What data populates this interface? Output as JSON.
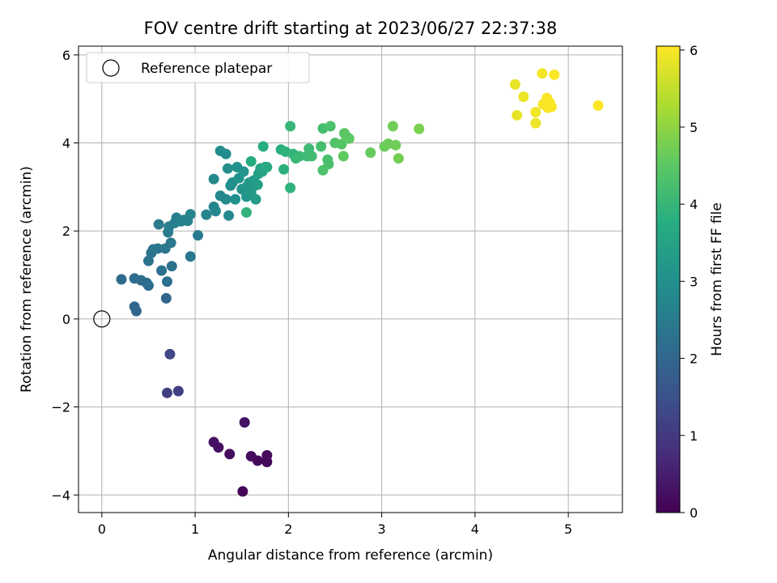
{
  "chart_data": {
    "type": "scatter",
    "title": "FOV centre drift starting at 2023/06/27 22:37:38",
    "xlabel": "Angular distance from reference (arcmin)",
    "ylabel": "Rotation from reference (arcmin)",
    "colorbar_label": "Hours from first FF file",
    "xlim": [
      -0.25,
      5.58
    ],
    "ylim": [
      -4.4,
      6.2
    ],
    "x_ticks": [
      0,
      1,
      2,
      3,
      4,
      5
    ],
    "y_ticks": [
      -4,
      -2,
      0,
      2,
      4,
      6
    ],
    "colorbar_range": [
      0,
      6.05
    ],
    "colorbar_ticks": [
      0,
      1,
      2,
      3,
      4,
      5,
      6
    ],
    "colormap": "viridis",
    "grid": true,
    "legend": {
      "position": "top-left",
      "entries": [
        "Reference platepar"
      ]
    },
    "reference_point": {
      "x": 0,
      "y": 0
    },
    "points": [
      {
        "x": 1.51,
        "y": -3.92,
        "h": 0.05
      },
      {
        "x": 1.77,
        "y": -3.25,
        "h": 0.1
      },
      {
        "x": 1.67,
        "y": -3.22,
        "h": 0.12
      },
      {
        "x": 1.6,
        "y": -3.12,
        "h": 0.15
      },
      {
        "x": 1.77,
        "y": -3.1,
        "h": 0.17
      },
      {
        "x": 1.37,
        "y": -3.07,
        "h": 0.2
      },
      {
        "x": 1.25,
        "y": -2.92,
        "h": 0.25
      },
      {
        "x": 1.2,
        "y": -2.8,
        "h": 0.28
      },
      {
        "x": 1.53,
        "y": -2.35,
        "h": 0.3
      },
      {
        "x": 0.7,
        "y": -1.68,
        "h": 1.1
      },
      {
        "x": 0.82,
        "y": -1.64,
        "h": 1.15
      },
      {
        "x": 0.73,
        "y": -0.8,
        "h": 1.3
      },
      {
        "x": 0.35,
        "y": 0.28,
        "h": 2.0
      },
      {
        "x": 0.37,
        "y": 0.18,
        "h": 2.0
      },
      {
        "x": 0.69,
        "y": 0.47,
        "h": 2.0
      },
      {
        "x": 0.21,
        "y": 0.9,
        "h": 2.1
      },
      {
        "x": 0.35,
        "y": 0.92,
        "h": 2.1
      },
      {
        "x": 0.42,
        "y": 0.88,
        "h": 2.1
      },
      {
        "x": 0.48,
        "y": 0.82,
        "h": 2.1
      },
      {
        "x": 0.5,
        "y": 0.76,
        "h": 2.15
      },
      {
        "x": 0.7,
        "y": 0.85,
        "h": 2.2
      },
      {
        "x": 0.64,
        "y": 1.1,
        "h": 2.25
      },
      {
        "x": 0.75,
        "y": 1.2,
        "h": 2.25
      },
      {
        "x": 0.5,
        "y": 1.32,
        "h": 2.3
      },
      {
        "x": 0.53,
        "y": 1.5,
        "h": 2.3
      },
      {
        "x": 0.55,
        "y": 1.58,
        "h": 2.3
      },
      {
        "x": 0.6,
        "y": 1.6,
        "h": 2.35
      },
      {
        "x": 0.68,
        "y": 1.6,
        "h": 2.4
      },
      {
        "x": 0.74,
        "y": 1.73,
        "h": 2.4
      },
      {
        "x": 0.95,
        "y": 1.42,
        "h": 2.4
      },
      {
        "x": 1.03,
        "y": 1.9,
        "h": 2.45
      },
      {
        "x": 0.61,
        "y": 2.15,
        "h": 2.5
      },
      {
        "x": 0.71,
        "y": 1.97,
        "h": 2.5
      },
      {
        "x": 0.72,
        "y": 2.1,
        "h": 2.55
      },
      {
        "x": 0.78,
        "y": 2.18,
        "h": 2.6
      },
      {
        "x": 0.8,
        "y": 2.3,
        "h": 2.6
      },
      {
        "x": 0.85,
        "y": 2.22,
        "h": 2.6
      },
      {
        "x": 0.88,
        "y": 2.25,
        "h": 2.65
      },
      {
        "x": 0.92,
        "y": 2.23,
        "h": 2.65
      },
      {
        "x": 0.95,
        "y": 2.38,
        "h": 2.7
      },
      {
        "x": 1.12,
        "y": 2.37,
        "h": 2.7
      },
      {
        "x": 1.2,
        "y": 2.55,
        "h": 2.75
      },
      {
        "x": 1.22,
        "y": 2.45,
        "h": 2.75
      },
      {
        "x": 1.27,
        "y": 2.8,
        "h": 2.8
      },
      {
        "x": 1.33,
        "y": 2.72,
        "h": 2.8
      },
      {
        "x": 1.36,
        "y": 2.35,
        "h": 2.8
      },
      {
        "x": 1.2,
        "y": 3.18,
        "h": 2.85
      },
      {
        "x": 1.27,
        "y": 3.82,
        "h": 2.9
      },
      {
        "x": 1.33,
        "y": 3.75,
        "h": 2.9
      },
      {
        "x": 1.35,
        "y": 3.42,
        "h": 2.95
      },
      {
        "x": 1.38,
        "y": 3.03,
        "h": 3.0
      },
      {
        "x": 1.4,
        "y": 3.1,
        "h": 3.0
      },
      {
        "x": 1.43,
        "y": 2.72,
        "h": 3.0
      },
      {
        "x": 1.45,
        "y": 3.45,
        "h": 3.05
      },
      {
        "x": 1.47,
        "y": 3.2,
        "h": 3.05
      },
      {
        "x": 1.5,
        "y": 2.95,
        "h": 3.1
      },
      {
        "x": 1.52,
        "y": 3.35,
        "h": 3.1
      },
      {
        "x": 1.55,
        "y": 3.0,
        "h": 3.15
      },
      {
        "x": 1.55,
        "y": 2.78,
        "h": 3.15
      },
      {
        "x": 1.58,
        "y": 3.1,
        "h": 3.2
      },
      {
        "x": 1.6,
        "y": 2.85,
        "h": 3.2
      },
      {
        "x": 1.62,
        "y": 3.0,
        "h": 3.25
      },
      {
        "x": 1.63,
        "y": 3.15,
        "h": 3.3
      },
      {
        "x": 1.65,
        "y": 2.72,
        "h": 3.3
      },
      {
        "x": 1.67,
        "y": 3.05,
        "h": 3.35
      },
      {
        "x": 1.68,
        "y": 3.3,
        "h": 3.4
      },
      {
        "x": 1.7,
        "y": 3.42,
        "h": 3.45
      },
      {
        "x": 1.72,
        "y": 3.35,
        "h": 3.5
      },
      {
        "x": 1.75,
        "y": 3.45,
        "h": 3.6
      },
      {
        "x": 1.77,
        "y": 3.45,
        "h": 3.65
      },
      {
        "x": 1.6,
        "y": 3.58,
        "h": 3.7
      },
      {
        "x": 1.73,
        "y": 3.92,
        "h": 3.75
      },
      {
        "x": 1.55,
        "y": 2.42,
        "h": 3.9
      },
      {
        "x": 1.92,
        "y": 3.85,
        "h": 3.8
      },
      {
        "x": 1.95,
        "y": 3.4,
        "h": 3.85
      },
      {
        "x": 1.97,
        "y": 3.8,
        "h": 3.9
      },
      {
        "x": 2.02,
        "y": 2.98,
        "h": 3.9
      },
      {
        "x": 2.05,
        "y": 3.75,
        "h": 3.95
      },
      {
        "x": 2.08,
        "y": 3.65,
        "h": 4.0
      },
      {
        "x": 2.02,
        "y": 4.38,
        "h": 4.0
      },
      {
        "x": 2.12,
        "y": 3.7,
        "h": 4.05
      },
      {
        "x": 2.2,
        "y": 3.7,
        "h": 4.1
      },
      {
        "x": 2.22,
        "y": 3.87,
        "h": 4.1
      },
      {
        "x": 2.25,
        "y": 3.7,
        "h": 4.15
      },
      {
        "x": 2.35,
        "y": 3.92,
        "h": 4.2
      },
      {
        "x": 2.37,
        "y": 4.33,
        "h": 4.2
      },
      {
        "x": 2.42,
        "y": 3.62,
        "h": 4.25
      },
      {
        "x": 2.43,
        "y": 3.52,
        "h": 4.25
      },
      {
        "x": 2.45,
        "y": 4.38,
        "h": 4.3
      },
      {
        "x": 2.37,
        "y": 3.38,
        "h": 4.3
      },
      {
        "x": 2.5,
        "y": 4.0,
        "h": 4.35
      },
      {
        "x": 2.57,
        "y": 3.97,
        "h": 4.4
      },
      {
        "x": 2.6,
        "y": 4.22,
        "h": 4.45
      },
      {
        "x": 2.62,
        "y": 4.15,
        "h": 4.5
      },
      {
        "x": 2.65,
        "y": 4.1,
        "h": 4.5
      },
      {
        "x": 2.59,
        "y": 3.7,
        "h": 4.55
      },
      {
        "x": 2.88,
        "y": 3.78,
        "h": 4.6
      },
      {
        "x": 3.03,
        "y": 3.92,
        "h": 4.65
      },
      {
        "x": 3.07,
        "y": 3.98,
        "h": 4.65
      },
      {
        "x": 3.12,
        "y": 4.38,
        "h": 4.7
      },
      {
        "x": 3.15,
        "y": 3.95,
        "h": 4.7
      },
      {
        "x": 3.18,
        "y": 3.65,
        "h": 4.75
      },
      {
        "x": 3.4,
        "y": 4.32,
        "h": 4.8
      },
      {
        "x": 4.43,
        "y": 5.33,
        "h": 5.85
      },
      {
        "x": 4.45,
        "y": 4.63,
        "h": 5.85
      },
      {
        "x": 4.52,
        "y": 5.05,
        "h": 5.9
      },
      {
        "x": 4.65,
        "y": 4.45,
        "h": 5.9
      },
      {
        "x": 4.65,
        "y": 4.7,
        "h": 5.95
      },
      {
        "x": 4.72,
        "y": 5.58,
        "h": 5.95
      },
      {
        "x": 4.73,
        "y": 4.88,
        "h": 6.0
      },
      {
        "x": 4.77,
        "y": 5.02,
        "h": 6.0
      },
      {
        "x": 4.78,
        "y": 4.8,
        "h": 6.0
      },
      {
        "x": 4.8,
        "y": 4.92,
        "h": 6.02
      },
      {
        "x": 4.82,
        "y": 4.82,
        "h": 6.02
      },
      {
        "x": 4.85,
        "y": 5.55,
        "h": 6.03
      },
      {
        "x": 5.32,
        "y": 4.85,
        "h": 6.05
      }
    ]
  }
}
